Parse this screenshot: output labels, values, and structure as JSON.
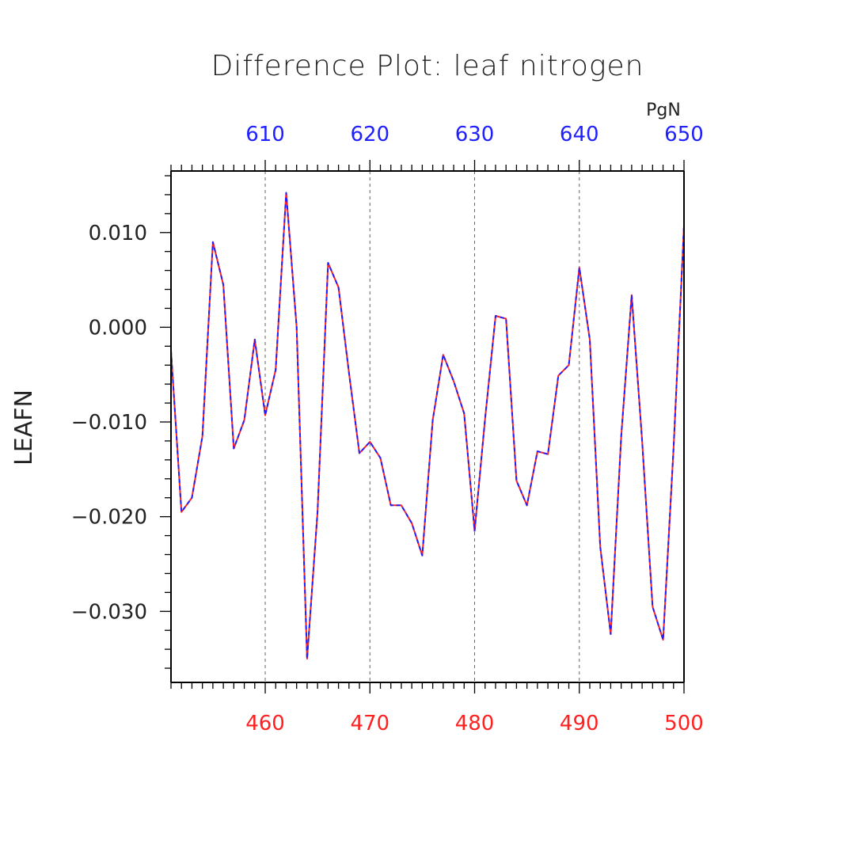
{
  "chart_data": {
    "type": "line",
    "title": "Difference Plot: leaf nitrogen",
    "ylabel": "LEAFN",
    "xlabel": "",
    "top_axis_unit": "PgN",
    "xlim": [
      451,
      500
    ],
    "ylim": [
      -0.0375,
      0.0165
    ],
    "top_axis_offset": 150,
    "x_ticks_bottom": [
      "460",
      "470",
      "480",
      "490",
      "500"
    ],
    "x_ticks_top": [
      "610",
      "620",
      "630",
      "640",
      "650"
    ],
    "y_ticks": [
      "0.010",
      "0.000",
      "−0.010",
      "−0.020",
      "−0.030"
    ],
    "grid": "vertical dashed at major x ticks",
    "colors": {
      "line_solid": "#ff2020",
      "line_dashed": "#2020ff",
      "bottom_ticks": "#ff2020",
      "top_ticks": "#2020ff"
    },
    "x": [
      451,
      452,
      453,
      454,
      455,
      456,
      457,
      458,
      459,
      460,
      461,
      462,
      463,
      464,
      465,
      466,
      467,
      468,
      469,
      470,
      471,
      472,
      473,
      474,
      475,
      476,
      477,
      478,
      479,
      480,
      481,
      482,
      483,
      484,
      485,
      486,
      487,
      488,
      489,
      490,
      491,
      492,
      493,
      494,
      495,
      496,
      497,
      498,
      499,
      500
    ],
    "series": [
      {
        "values": [
          -0.0025,
          -0.0195,
          -0.018,
          -0.0115,
          0.009,
          0.0045,
          -0.0128,
          -0.0098,
          -0.0013,
          -0.0093,
          -0.0045,
          0.0142,
          0.0,
          -0.035,
          -0.0195,
          0.0068,
          0.0042,
          -0.0048,
          -0.0133,
          -0.0121,
          -0.0138,
          -0.0188,
          -0.0188,
          -0.0207,
          -0.0241,
          -0.0098,
          -0.0029,
          -0.0057,
          -0.0091,
          -0.0215,
          -0.0097,
          0.0012,
          0.0009,
          -0.0162,
          -0.0188,
          -0.0131,
          -0.0134,
          -0.0051,
          -0.004,
          0.0063,
          -0.0013,
          -0.0232,
          -0.0324,
          -0.0115,
          0.0034,
          -0.012,
          -0.0295,
          -0.033,
          -0.0128,
          0.0107
        ]
      }
    ]
  }
}
